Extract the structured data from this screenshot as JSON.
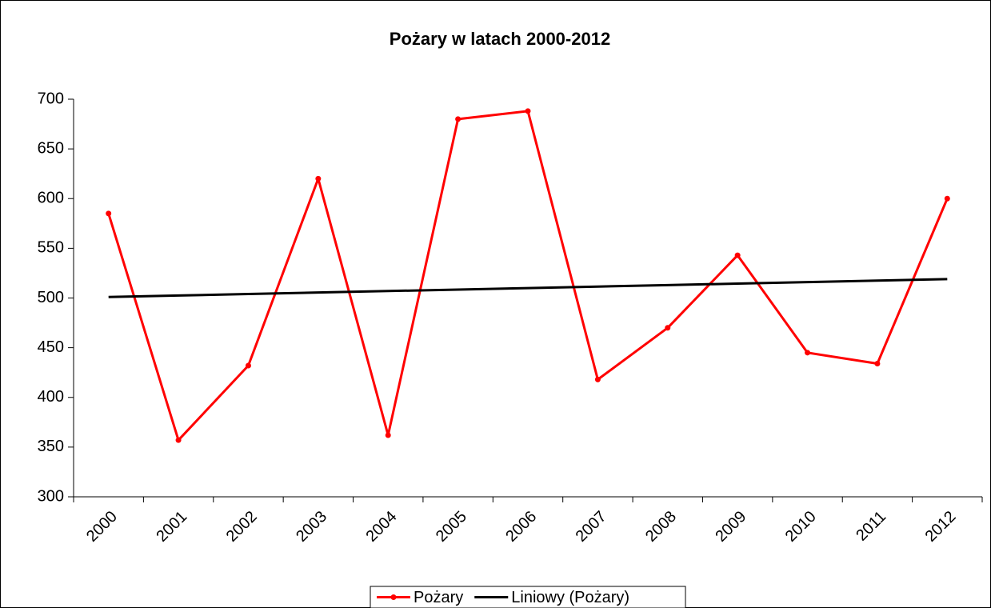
{
  "chart_data": {
    "type": "line",
    "title": "Pożary w latach 2000-2012",
    "categories": [
      "2000",
      "2001",
      "2002",
      "2003",
      "2004",
      "2005",
      "2006",
      "2007",
      "2008",
      "2009",
      "2010",
      "2011",
      "2012"
    ],
    "series": [
      {
        "name": "Pożary",
        "color": "#ff0000",
        "markers": true,
        "values": [
          585,
          357,
          432,
          620,
          362,
          680,
          688,
          418,
          470,
          543,
          445,
          434,
          600
        ]
      },
      {
        "name": "Liniowy (Pożary)",
        "color": "#000000",
        "markers": false,
        "values": [
          501,
          502.5,
          504,
          505.5,
          507,
          508.5,
          510,
          511.5,
          513,
          514.5,
          516,
          517.5,
          519
        ]
      }
    ],
    "ylim": [
      300,
      700
    ],
    "yticks": [
      300,
      350,
      400,
      450,
      500,
      550,
      600,
      650,
      700
    ],
    "grid": false,
    "legend": "bottom"
  }
}
